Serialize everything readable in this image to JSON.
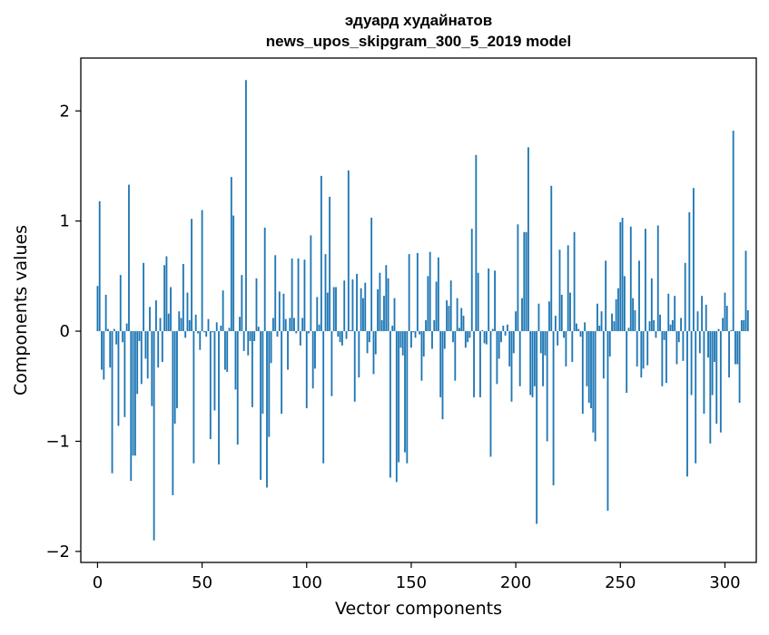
{
  "chart_data": {
    "type": "bar",
    "title": "эдуард худайнатов",
    "subtitle": "news_upos_skipgram_300_5_2019 model",
    "xlabel": "Vector components",
    "ylabel": "Components values",
    "xlim": [
      -8,
      315
    ],
    "ylim": [
      -2.1,
      2.48
    ],
    "x_ticks": [
      0,
      50,
      100,
      150,
      200,
      250,
      300
    ],
    "y_ticks": [
      -2,
      -1,
      0,
      1,
      2
    ],
    "x_tick_labels": [
      "0",
      "50",
      "100",
      "150",
      "200",
      "250",
      "300"
    ],
    "y_tick_labels": [
      "−2",
      "−1",
      "0",
      "1",
      "2"
    ],
    "bar_color": "#1f77b4",
    "grid": false,
    "legend": "none",
    "values": [
      0.41,
      1.18,
      -0.35,
      -0.44,
      0.33,
      0.02,
      -0.33,
      -1.29,
      0.02,
      -0.12,
      -0.86,
      0.51,
      -0.1,
      -0.78,
      0.07,
      1.33,
      -1.36,
      -1.13,
      -1.13,
      -0.57,
      -0.09,
      -0.48,
      0.62,
      -0.25,
      -0.43,
      0.22,
      -0.68,
      -1.9,
      0.28,
      -0.33,
      0.12,
      -0.28,
      0.6,
      0.68,
      0.16,
      0.4,
      -1.49,
      -0.84,
      -0.7,
      0.18,
      0.12,
      0.61,
      -0.06,
      0.35,
      0.1,
      1.02,
      -1.2,
      0.15,
      -0.02,
      -0.17,
      1.1,
      -0.01,
      -0.05,
      0.11,
      -0.98,
      -0.01,
      -0.72,
      0.08,
      -1.21,
      0.05,
      0.37,
      -0.35,
      -0.37,
      0.03,
      1.4,
      1.05,
      -0.53,
      -1.03,
      0.13,
      0.51,
      -0.18,
      2.28,
      -0.22,
      -0.09,
      -0.69,
      -0.09,
      0.48,
      0.04,
      -1.35,
      -0.75,
      0.94,
      -1.42,
      -0.96,
      -0.29,
      0.12,
      0.69,
      -0.05,
      0.36,
      -0.75,
      0.34,
      0.11,
      -0.35,
      0.12,
      0.66,
      0.12,
      -0.02,
      0.66,
      -0.13,
      0.12,
      0.65,
      -0.7,
      -0.02,
      0.87,
      -0.52,
      -0.34,
      0.31,
      0.06,
      1.41,
      -1.2,
      0.7,
      0.35,
      1.22,
      -0.59,
      0.4,
      0.4,
      -0.05,
      -0.1,
      -0.13,
      0.46,
      -0.07,
      1.46,
      0.01,
      0.47,
      -0.64,
      0.52,
      -0.42,
      0.39,
      0.3,
      0.44,
      -0.2,
      -0.1,
      1.03,
      -0.39,
      -0.21,
      0.38,
      0.53,
      0.1,
      0.32,
      0.6,
      0.48,
      -1.33,
      0.05,
      0.3,
      -1.37,
      -1.19,
      -0.15,
      -0.22,
      -1.1,
      -1.2,
      0.7,
      -0.15,
      -0.01,
      -0.06,
      0.71,
      -0.03,
      -0.45,
      -0.23,
      0.1,
      0.5,
      0.72,
      -0.16,
      0.1,
      0.45,
      0.67,
      -0.6,
      -0.8,
      -0.16,
      0.28,
      0.23,
      0.46,
      -0.1,
      -0.45,
      0.3,
      0.03,
      0.21,
      0.14,
      -0.15,
      -0.1,
      -0.06,
      0.93,
      -0.6,
      1.6,
      0.53,
      -0.6,
      0.01,
      -0.11,
      -0.12,
      0.57,
      -1.14,
      0.02,
      0.55,
      -0.48,
      -0.25,
      -0.1,
      0.05,
      -0.04,
      0.06,
      -0.32,
      -0.64,
      -0.2,
      0.18,
      0.97,
      -0.5,
      0.3,
      0.9,
      0.9,
      1.67,
      -0.58,
      -0.6,
      -0.5,
      -1.75,
      0.25,
      -0.2,
      -0.5,
      -0.22,
      -1.0,
      0.27,
      1.32,
      -1.4,
      0.14,
      -0.13,
      0.74,
      0.33,
      -0.06,
      -0.32,
      0.78,
      0.35,
      -0.28,
      0.9,
      0.07,
      0.02,
      -0.05,
      -0.75,
      0.08,
      -0.5,
      -0.65,
      -0.7,
      -0.92,
      -1.0,
      0.25,
      0.05,
      0.18,
      -0.43,
      0.64,
      -1.63,
      -0.23,
      0.16,
      0.09,
      0.29,
      0.39,
      0.99,
      1.03,
      0.5,
      -0.56,
      0.03,
      0.95,
      0.3,
      0.19,
      -0.32,
      0.64,
      -0.42,
      -0.34,
      0.93,
      -0.31,
      0.09,
      0.48,
      0.1,
      -0.06,
      0.96,
      0.15,
      -0.5,
      -0.08,
      -0.47,
      0.34,
      0.06,
      0.1,
      0.32,
      -0.3,
      -0.1,
      0.12,
      -0.27,
      0.62,
      -1.32,
      1.08,
      -0.58,
      1.3,
      -1.2,
      0.18,
      -0.2,
      0.32,
      -0.75,
      0.24,
      -0.24,
      -1.02,
      -0.58,
      -0.28,
      -0.84,
      0.02,
      -0.92,
      0.12,
      0.35,
      0.23,
      -0.42,
      0.01,
      1.82,
      -0.3,
      -0.3,
      -0.65,
      0.1,
      0.1,
      0.73,
      0.19
    ]
  }
}
